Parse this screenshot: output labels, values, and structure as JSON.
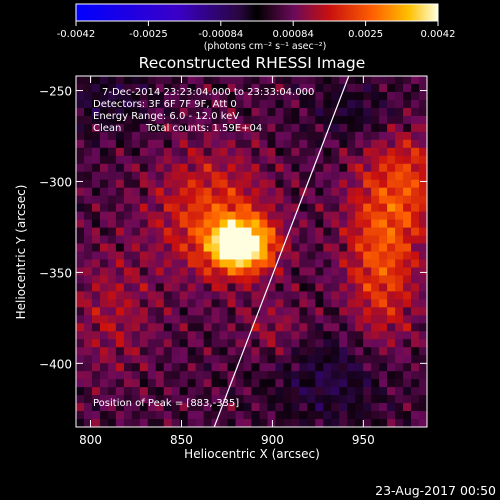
{
  "chart_data": {
    "type": "heatmap",
    "title": "Reconstructed RHESSI Image",
    "xlabel": "Heliocentric X (arcsec)",
    "ylabel": "Heliocentric Y (arcsec)",
    "xlim": [
      792,
      985
    ],
    "ylim": [
      -435,
      -242
    ],
    "xticks": [
      800,
      850,
      900,
      950
    ],
    "yticks": [
      -250,
      -300,
      -350,
      -400
    ],
    "colorbar": {
      "ticks": [
        "-0.0042",
        "-0.0025",
        "-0.00084",
        "0.00084",
        "0.0025",
        "0.0042"
      ],
      "range": [
        -0.0042,
        0.0042
      ],
      "unit_label": "(photons cm⁻² s⁻¹ asec⁻²)"
    },
    "annotations": [
      "7-Dec-2014 23:23:04.000 to 23:33:04.000",
      "Detectors: 3F 6F 7F 9F, Att 0",
      "Energy Range: 6.0 - 12.0 keV",
      "Clean",
      "Total counts: 1.59E+04"
    ],
    "peak_label": "Position of Peak = [883,-335]",
    "peak": {
      "x": 883,
      "y": -335
    },
    "limb_line": [
      [
        868,
        -435
      ],
      [
        942,
        -242
      ]
    ],
    "sources": [
      {
        "x": 883,
        "y": -335,
        "sx": 12,
        "sy": 10,
        "amp": 0.0042
      },
      {
        "x": 866,
        "y": -318,
        "sx": 22,
        "sy": 24,
        "amp": 0.0016
      },
      {
        "x": 960,
        "y": -335,
        "sx": 14,
        "sy": 40,
        "amp": 0.0019
      },
      {
        "x": 978,
        "y": -300,
        "sx": 10,
        "sy": 20,
        "amp": 0.0011
      },
      {
        "x": 812,
        "y": -372,
        "sx": 16,
        "sy": 24,
        "amp": 0.0008
      },
      {
        "x": 902,
        "y": -382,
        "sx": 14,
        "sy": 12,
        "amp": 0.0007
      },
      {
        "x": 935,
        "y": -408,
        "sx": 24,
        "sy": 18,
        "amp": -0.001
      },
      {
        "x": 810,
        "y": -255,
        "sx": 18,
        "sy": 12,
        "amp": -0.0008
      },
      {
        "x": 948,
        "y": -262,
        "sx": 18,
        "sy": 12,
        "amp": -0.0009
      }
    ]
  },
  "footer": {
    "timestamp": "23-Aug-2017 00:50"
  }
}
